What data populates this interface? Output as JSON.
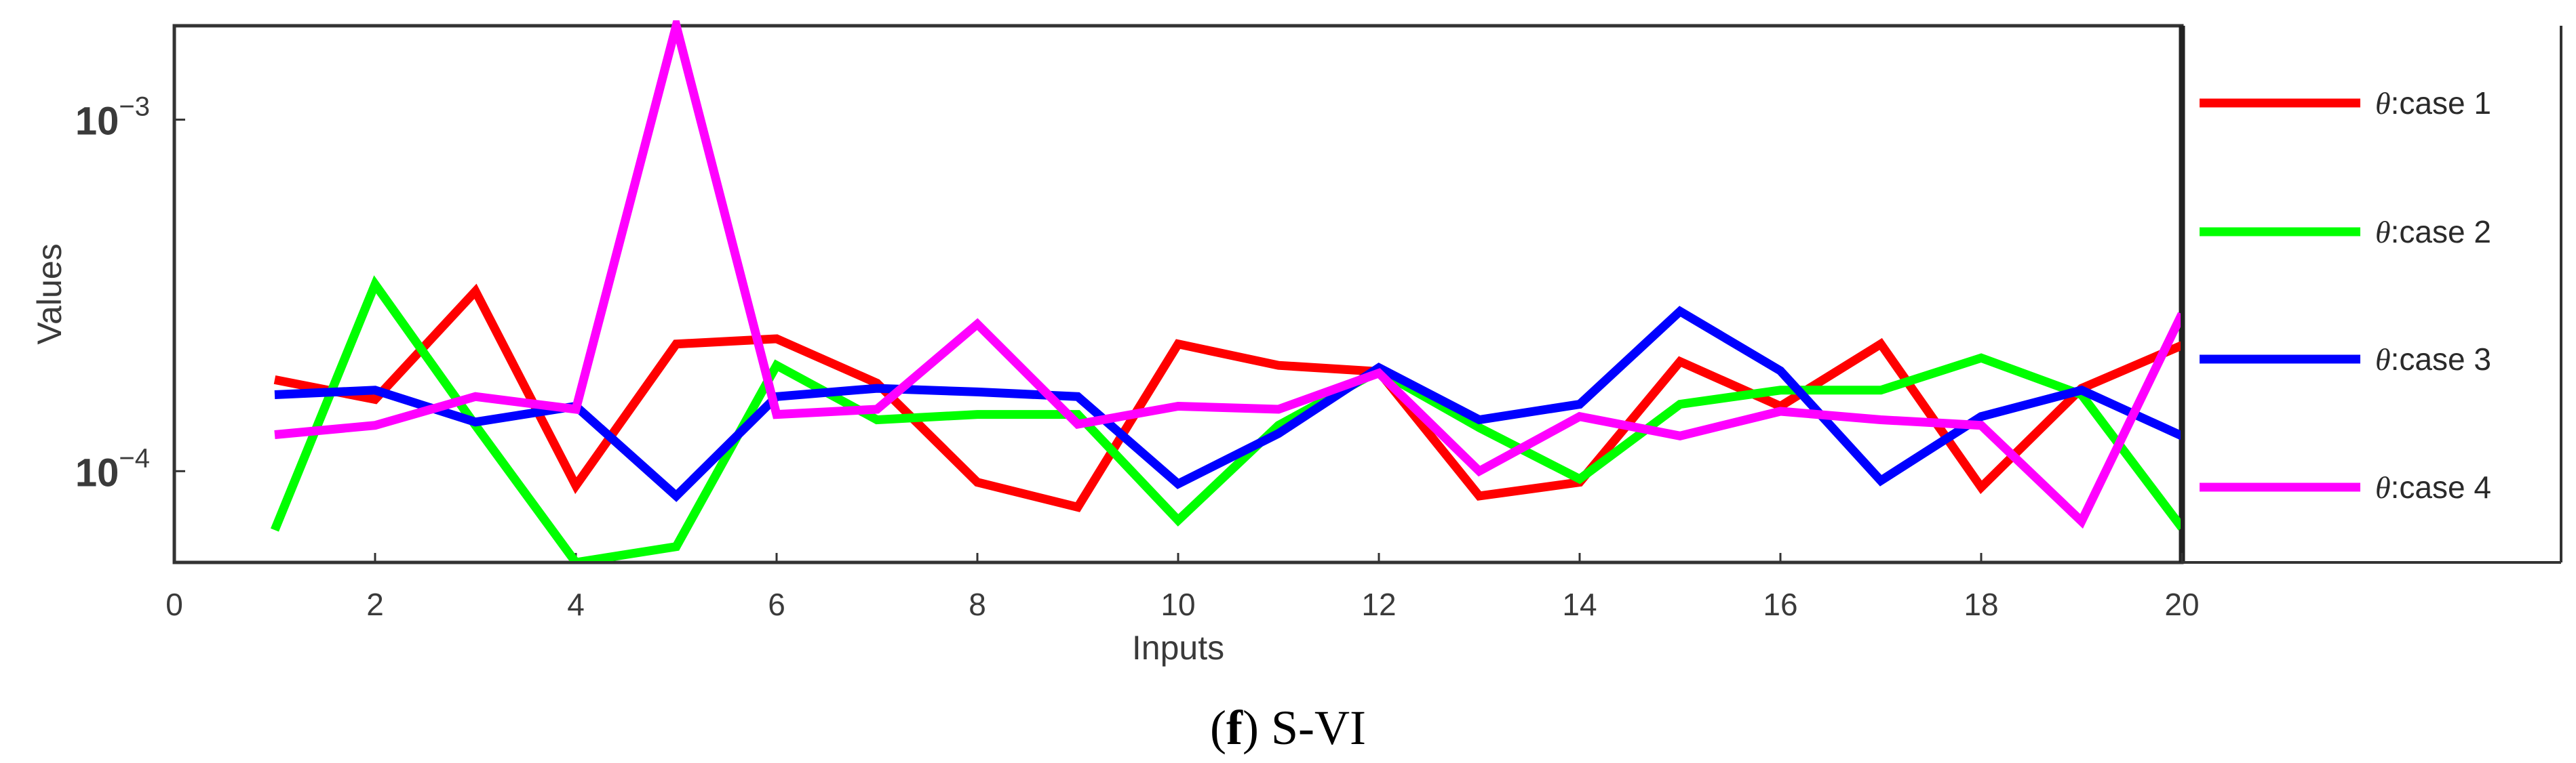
{
  "chart_data": {
    "type": "line",
    "title": "",
    "xlabel": "Inputs",
    "ylabel": "Values",
    "yscale": "log",
    "xlim": [
      0,
      20
    ],
    "ylim": [
      5.5e-05,
      0.00185
    ],
    "x_ticks": [
      "0",
      "2",
      "4",
      "6",
      "8",
      "10",
      "12",
      "14",
      "16",
      "18",
      "20"
    ],
    "y_ticks": [
      {
        "value": 0.001,
        "base": "10",
        "exp": "−3"
      },
      {
        "value": 0.0001,
        "base": "10",
        "exp": "−4"
      }
    ],
    "grid": false,
    "legend_position": "right",
    "x": [
      1,
      2,
      3,
      4,
      5,
      6,
      7,
      8,
      9,
      10,
      11,
      12,
      13,
      14,
      15,
      16,
      17,
      18,
      19,
      20
    ],
    "series": [
      {
        "name": "case 1",
        "symbol": "θ",
        "label": ":case 1",
        "color": "#ff0000",
        "values": [
          0.000182,
          0.00016,
          0.000325,
          9.1e-05,
          0.00023,
          0.000238,
          0.000178,
          9.3e-05,
          7.9e-05,
          0.00023,
          0.0002,
          0.000192,
          8.5e-05,
          9.3e-05,
          0.000205,
          0.000153,
          0.00023,
          9e-05,
          0.000172,
          0.000228
        ]
      },
      {
        "name": "case 2",
        "symbol": "θ",
        "label": ":case 2",
        "color": "#00ff00",
        "values": [
          6.8e-05,
          0.00034,
          0.000135,
          5.5e-05,
          6.1e-05,
          0.0002,
          0.00014,
          0.000145,
          0.000145,
          7.25e-05,
          0.000135,
          0.000193,
          0.000133,
          9.5e-05,
          0.000155,
          0.00017,
          0.00017,
          0.00021,
          0.000165,
          6.9e-05
        ]
      },
      {
        "name": "case 3",
        "symbol": "θ",
        "label": ":case 3",
        "color": "#0000ff",
        "values": [
          0.000165,
          0.00017,
          0.000138,
          0.000153,
          8.5e-05,
          0.000163,
          0.000172,
          0.000168,
          0.000163,
          9.2e-05,
          0.000128,
          0.000197,
          0.00014,
          0.000155,
          0.000285,
          0.000193,
          9.4e-05,
          0.000143,
          0.00017,
          0.000126
        ]
      },
      {
        "name": "case 4",
        "symbol": "θ",
        "label": ":case 4",
        "color": "#ff00ff",
        "values": [
          0.000127,
          0.000135,
          0.000163,
          0.00015,
          0.00185,
          0.000145,
          0.00015,
          0.000262,
          0.000136,
          0.000153,
          0.00015,
          0.00019,
          0.0001,
          0.000143,
          0.000126,
          0.000148,
          0.00014,
          0.000135,
          7.2e-05,
          0.00028
        ]
      }
    ]
  },
  "caption": {
    "open": "(",
    "letter": "f",
    "close": ")",
    "text": " S-VI"
  }
}
